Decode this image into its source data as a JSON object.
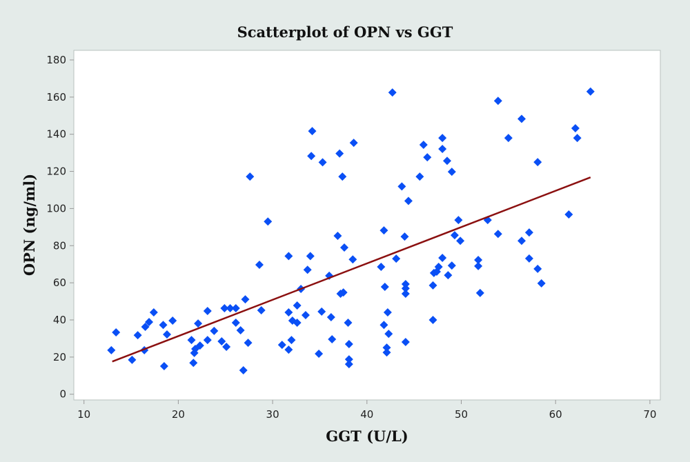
{
  "chart_data": {
    "type": "scatter",
    "title": "Scatterplot of OPN vs GGT",
    "xlabel": "GGT (U/L)",
    "ylabel": "OPN (ng/ml)",
    "xlim": [
      9,
      71
    ],
    "ylim": [
      -6,
      184
    ],
    "xticks": [
      10,
      20,
      30,
      40,
      50,
      60,
      70
    ],
    "yticks": [
      0,
      20,
      40,
      60,
      80,
      100,
      120,
      140,
      160,
      180
    ],
    "grid": false,
    "colors": {
      "points": "#0a4ff5",
      "fit_line": "#8b1010",
      "background": "#e4ebe9",
      "plot_bg": "#ffffff"
    },
    "fit_line": {
      "x": [
        13.0,
        63.7
      ],
      "y": [
        17.6,
        116.8
      ]
    },
    "points": [
      [
        12.9,
        23.7
      ],
      [
        13.4,
        33.3
      ],
      [
        15.1,
        18.5
      ],
      [
        15.7,
        31.8
      ],
      [
        16.4,
        23.7
      ],
      [
        16.5,
        36.3
      ],
      [
        16.9,
        38.9
      ],
      [
        17.4,
        44.1
      ],
      [
        18.5,
        15.1
      ],
      [
        18.4,
        37.3
      ],
      [
        18.8,
        32.2
      ],
      [
        19.4,
        39.6
      ],
      [
        21.4,
        29.2
      ],
      [
        21.6,
        16.9
      ],
      [
        21.7,
        22.2
      ],
      [
        21.8,
        24.4
      ],
      [
        22.1,
        38.1
      ],
      [
        22.3,
        26.2
      ],
      [
        23.1,
        29.2
      ],
      [
        23.1,
        44.8
      ],
      [
        23.8,
        34.1
      ],
      [
        24.6,
        28.5
      ],
      [
        24.9,
        46.3
      ],
      [
        25.1,
        25.5
      ],
      [
        25.5,
        46.3
      ],
      [
        26.1,
        46.3
      ],
      [
        26.1,
        38.5
      ],
      [
        26.6,
        34.4
      ],
      [
        26.9,
        12.9
      ],
      [
        27.1,
        51.1
      ],
      [
        27.4,
        27.7
      ],
      [
        27.6,
        117.2
      ],
      [
        28.6,
        69.7
      ],
      [
        28.8,
        45.2
      ],
      [
        29.5,
        93.0
      ],
      [
        31.0,
        26.6
      ],
      [
        31.7,
        24.0
      ],
      [
        31.7,
        74.4
      ],
      [
        31.7,
        44.1
      ],
      [
        32.0,
        29.2
      ],
      [
        32.1,
        39.6
      ],
      [
        32.6,
        47.8
      ],
      [
        32.6,
        38.5
      ],
      [
        33.0,
        56.7
      ],
      [
        33.5,
        42.6
      ],
      [
        33.7,
        67.0
      ],
      [
        34.0,
        74.4
      ],
      [
        34.1,
        128.3
      ],
      [
        34.2,
        141.7
      ],
      [
        34.9,
        21.8
      ],
      [
        35.2,
        44.5
      ],
      [
        35.3,
        124.9
      ],
      [
        36.0,
        63.8
      ],
      [
        36.2,
        41.5
      ],
      [
        36.3,
        29.6
      ],
      [
        36.9,
        85.3
      ],
      [
        37.1,
        129.6
      ],
      [
        37.2,
        54.1
      ],
      [
        37.5,
        54.8
      ],
      [
        37.4,
        117.2
      ],
      [
        37.6,
        79.0
      ],
      [
        38.0,
        38.5
      ],
      [
        38.1,
        27.0
      ],
      [
        38.1,
        18.8
      ],
      [
        38.1,
        16.2
      ],
      [
        38.5,
        72.6
      ],
      [
        38.6,
        135.4
      ],
      [
        41.5,
        68.6
      ],
      [
        41.8,
        88.2
      ],
      [
        41.8,
        37.3
      ],
      [
        41.9,
        57.8
      ],
      [
        42.1,
        22.5
      ],
      [
        42.1,
        25.1
      ],
      [
        42.2,
        44.1
      ],
      [
        42.3,
        32.5
      ],
      [
        42.7,
        162.5
      ],
      [
        43.1,
        73.0
      ],
      [
        43.7,
        111.9
      ],
      [
        44.0,
        84.9
      ],
      [
        44.1,
        59.3
      ],
      [
        44.1,
        57.0
      ],
      [
        44.1,
        54.1
      ],
      [
        44.1,
        28.1
      ],
      [
        44.4,
        104.1
      ],
      [
        45.6,
        117.2
      ],
      [
        46.0,
        134.3
      ],
      [
        46.4,
        127.6
      ],
      [
        47.0,
        58.6
      ],
      [
        47.0,
        40.0
      ],
      [
        47.1,
        65.3
      ],
      [
        47.4,
        66.0
      ],
      [
        47.6,
        68.6
      ],
      [
        48.0,
        73.4
      ],
      [
        48.0,
        138.0
      ],
      [
        48.0,
        132.1
      ],
      [
        48.5,
        125.7
      ],
      [
        49.0,
        119.8
      ],
      [
        48.6,
        64.1
      ],
      [
        49.0,
        69.3
      ],
      [
        49.3,
        85.6
      ],
      [
        49.7,
        93.8
      ],
      [
        49.9,
        82.6
      ],
      [
        51.8,
        72.3
      ],
      [
        51.8,
        69.0
      ],
      [
        52.0,
        54.5
      ],
      [
        53.9,
        158.0
      ],
      [
        56.4,
        148.3
      ],
      [
        55.0,
        138.0
      ],
      [
        62.1,
        143.2
      ],
      [
        62.3,
        138.0
      ],
      [
        63.7,
        163.0
      ],
      [
        58.1,
        125.0
      ],
      [
        52.8,
        93.8
      ],
      [
        53.9,
        86.3
      ],
      [
        56.4,
        82.6
      ],
      [
        57.2,
        87.1
      ],
      [
        61.4,
        96.8
      ],
      [
        57.2,
        73.1
      ],
      [
        58.1,
        67.5
      ],
      [
        58.5,
        59.7
      ]
    ]
  }
}
